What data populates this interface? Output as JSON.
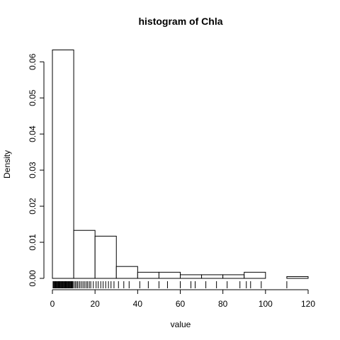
{
  "chart_data": {
    "type": "bar",
    "title": "histogram of Chla",
    "xlabel": "value",
    "ylabel": "Density",
    "bin_edges": [
      0,
      10,
      20,
      30,
      40,
      50,
      60,
      70,
      80,
      90,
      100,
      110,
      120
    ],
    "values": [
      0.0633,
      0.0133,
      0.0117,
      0.0033,
      0.0017,
      0.0017,
      0.001,
      0.001,
      0.001,
      0.0017,
      0.0,
      0.0005
    ],
    "xlim": [
      0,
      120
    ],
    "ylim": [
      0,
      0.063
    ],
    "x_ticks": [
      "0",
      "20",
      "40",
      "60",
      "80",
      "100",
      "120"
    ],
    "y_ticks": [
      "0.00",
      "0.01",
      "0.02",
      "0.03",
      "0.04",
      "0.05",
      "0.06"
    ],
    "rug": [
      0.3,
      0.6,
      0.9,
      1.2,
      1.5,
      1.8,
      2.1,
      2.4,
      2.7,
      3.0,
      3.3,
      3.6,
      3.9,
      4.2,
      4.5,
      4.8,
      5.1,
      5.4,
      5.7,
      6.0,
      6.3,
      6.6,
      6.9,
      7.2,
      7.5,
      7.8,
      8.1,
      8.4,
      8.7,
      9.0,
      9.3,
      9.6,
      10.2,
      10.8,
      11.5,
      12.0,
      12.8,
      13.5,
      14.3,
      15.0,
      15.8,
      16.5,
      17.3,
      18.0,
      19.2,
      20.5,
      21.5,
      22.7,
      23.8,
      25.0,
      26.3,
      27.5,
      28.9,
      31.0,
      33.5,
      36.0,
      41.0,
      45.0,
      50.0,
      54.0,
      60.0,
      65.0,
      67.0,
      72.0,
      77.0,
      82.0,
      88.0,
      91.0,
      93.0,
      98.0,
      110.0
    ]
  }
}
